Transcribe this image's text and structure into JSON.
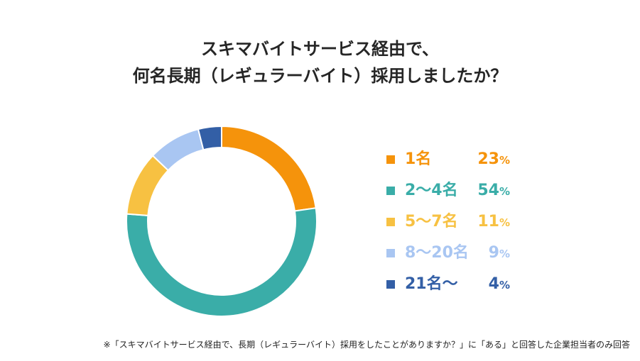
{
  "title": {
    "line1": "スキマバイトサービス経由で、",
    "line2": "何名長期（レギュラーバイト）採用しましたか？"
  },
  "chart_data": {
    "type": "pie",
    "donut": true,
    "categories": [
      "1名",
      "2〜4名",
      "5〜7名",
      "8〜20名",
      "21名〜"
    ],
    "values": [
      23,
      54,
      11,
      9,
      4
    ],
    "colors": [
      "#F5930B",
      "#3AADA8",
      "#F7C142",
      "#A9C6F2",
      "#335FA6"
    ],
    "value_suffix": "%",
    "legend_position": "right"
  },
  "footnote": "※「スキマバイトサービス経由で、長期（レギュラーバイト）採用をしたことがありますか？」に「ある」と回答した企業担当者のみ回答"
}
